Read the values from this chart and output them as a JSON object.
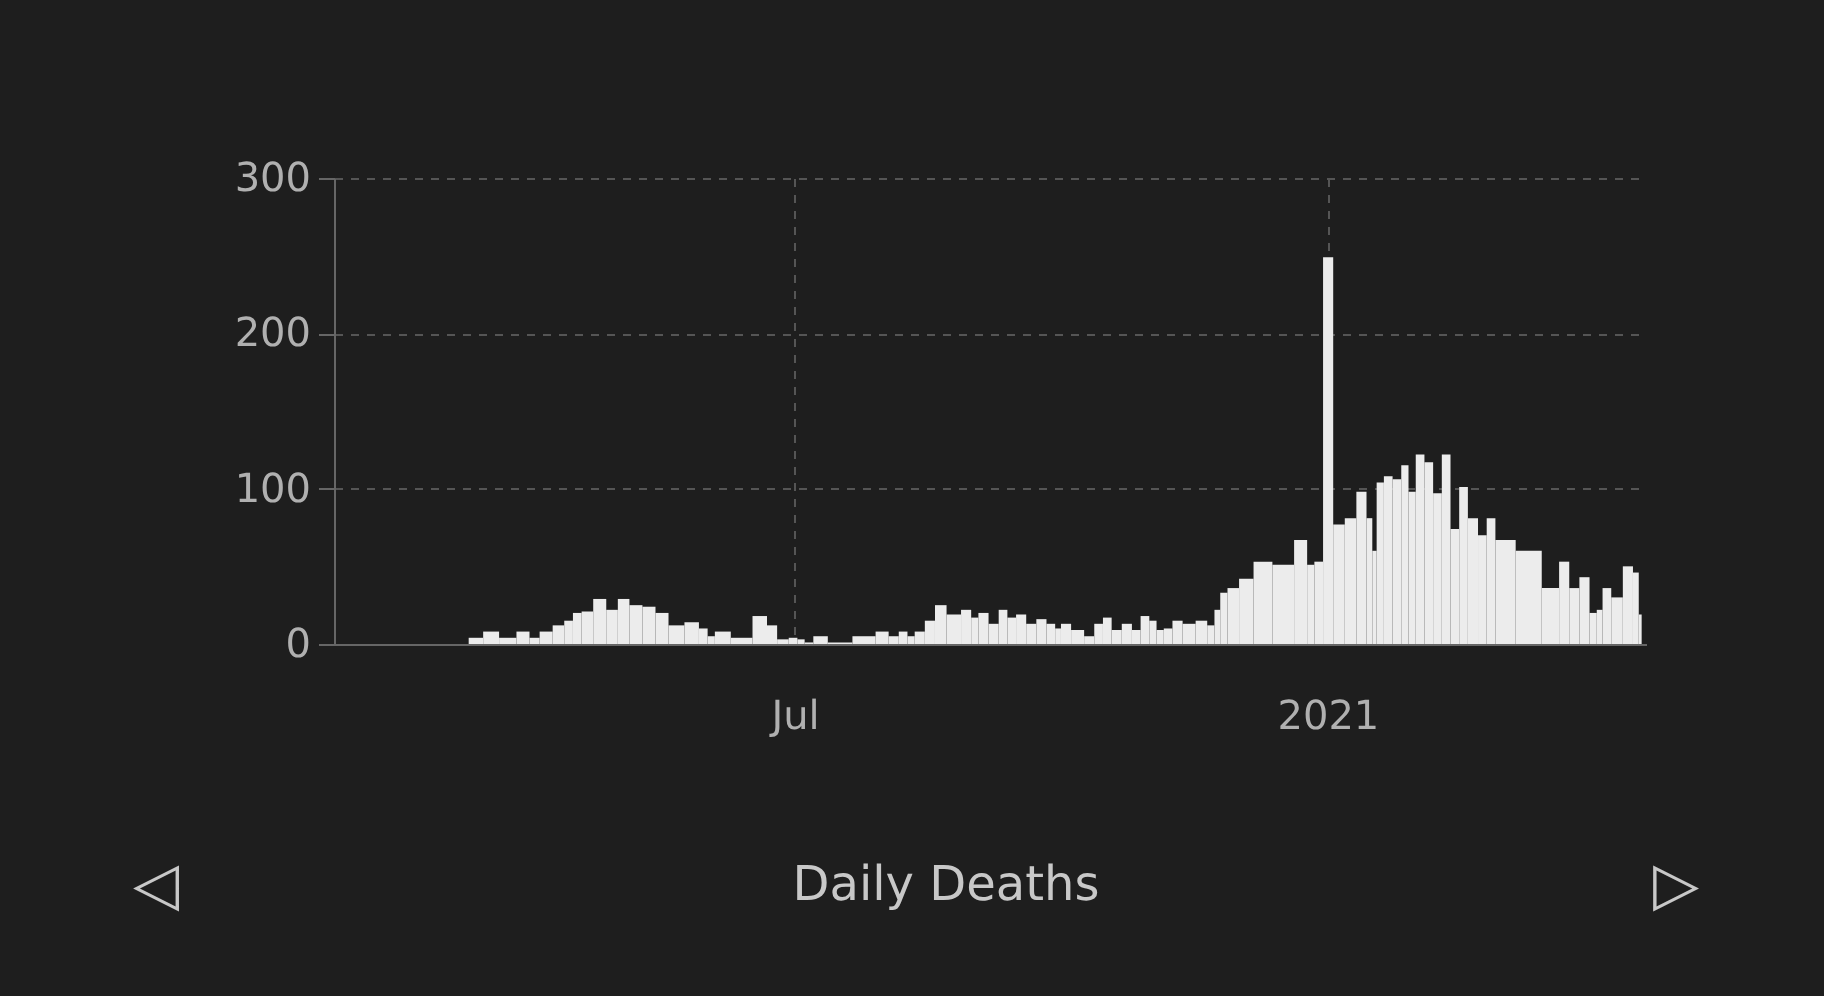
{
  "chart_data": {
    "type": "bar",
    "title": "Daily Deaths",
    "annotations": [
      "◁",
      "▷"
    ],
    "x": [
      "2020-03-13",
      "2020-03-18",
      "2020-03-24",
      "2020-03-30",
      "2020-04-02",
      "2020-04-06",
      "2020-04-11",
      "2020-04-14",
      "2020-04-17",
      "2020-04-20",
      "2020-04-25",
      "2020-04-29",
      "2020-05-03",
      "2020-05-07",
      "2020-05-12",
      "2020-05-16",
      "2020-05-21",
      "2020-05-27",
      "2020-05-31",
      "2020-06-02",
      "2020-06-05",
      "2020-06-13",
      "2020-06-20",
      "2020-06-23",
      "2020-06-27",
      "2020-07-01",
      "2020-07-03",
      "2020-07-06",
      "2020-07-09",
      "2020-07-16",
      "2020-07-26",
      "2020-08-01",
      "2020-08-04",
      "2020-08-08",
      "2020-08-10",
      "2020-08-13",
      "2020-08-17",
      "2020-08-20",
      "2020-08-25",
      "2020-08-30",
      "2020-09-01",
      "2020-09-04",
      "2020-09-08",
      "2020-09-11",
      "2020-09-14",
      "2020-09-17",
      "2020-09-21",
      "2020-09-24",
      "2020-09-28",
      "2020-09-30",
      "2020-10-02",
      "2020-10-07",
      "2020-10-11",
      "2020-10-14",
      "2020-10-17",
      "2020-10-20",
      "2020-10-24",
      "2020-10-27",
      "2020-10-30",
      "2020-11-02",
      "2020-11-04",
      "2020-11-07",
      "2020-11-10",
      "2020-11-14",
      "2020-11-19",
      "2020-11-22",
      "2020-11-24",
      "2020-11-26",
      "2020-11-29",
      "2020-12-04",
      "2020-12-09",
      "2020-12-17",
      "2020-12-24",
      "2020-12-26",
      "2020-12-29",
      "2021-01-01",
      "2021-01-05",
      "2021-01-09",
      "2021-01-13",
      "2021-01-16",
      "2021-01-17",
      "2021-01-19",
      "2021-01-22",
      "2021-01-25",
      "2021-01-28",
      "2021-01-30",
      "2021-02-02",
      "2021-02-05",
      "2021-02-08",
      "2021-02-11",
      "2021-02-14",
      "2021-02-17",
      "2021-02-20",
      "2021-02-24",
      "2021-02-26",
      "2021-03-02",
      "2021-03-12",
      "2021-03-20",
      "2021-03-24",
      "2021-03-27",
      "2021-03-31",
      "2021-04-03",
      "2021-04-05",
      "2021-04-07",
      "2021-04-11",
      "2021-04-15",
      "2021-04-18",
      "2021-04-19"
    ],
    "values": [
      4,
      8,
      4,
      8,
      4,
      8,
      12,
      15,
      20,
      21,
      29,
      22,
      29,
      25,
      24,
      20,
      12,
      14,
      10,
      5,
      8,
      4,
      18,
      12,
      3,
      4,
      3,
      1,
      5,
      1,
      5,
      8,
      5,
      8,
      5,
      8,
      15,
      25,
      19,
      22,
      17,
      20,
      13,
      22,
      17,
      19,
      13,
      16,
      13,
      10,
      13,
      9,
      5,
      13,
      17,
      9,
      13,
      9,
      18,
      15,
      9,
      10,
      15,
      13,
      15,
      12,
      22,
      33,
      36,
      42,
      53,
      51,
      67,
      51,
      53,
      249,
      77,
      81,
      98,
      81,
      60,
      104,
      108,
      106,
      115,
      98,
      122,
      117,
      97,
      122,
      74,
      101,
      81,
      70,
      81,
      67,
      60,
      36,
      53,
      36,
      43,
      20,
      22,
      36,
      30,
      50,
      46,
      19
    ],
    "color": "#ececec",
    "xlim": [
      "2020-01-24",
      "2021-04-21"
    ],
    "xticks": [
      {
        "value": "2020-07-01",
        "label": "Jul"
      },
      {
        "value": "2021-01-01",
        "label": "2021"
      }
    ],
    "ylim": [
      0,
      300
    ],
    "yticks": [
      0,
      100,
      200,
      300
    ],
    "grid": true
  }
}
